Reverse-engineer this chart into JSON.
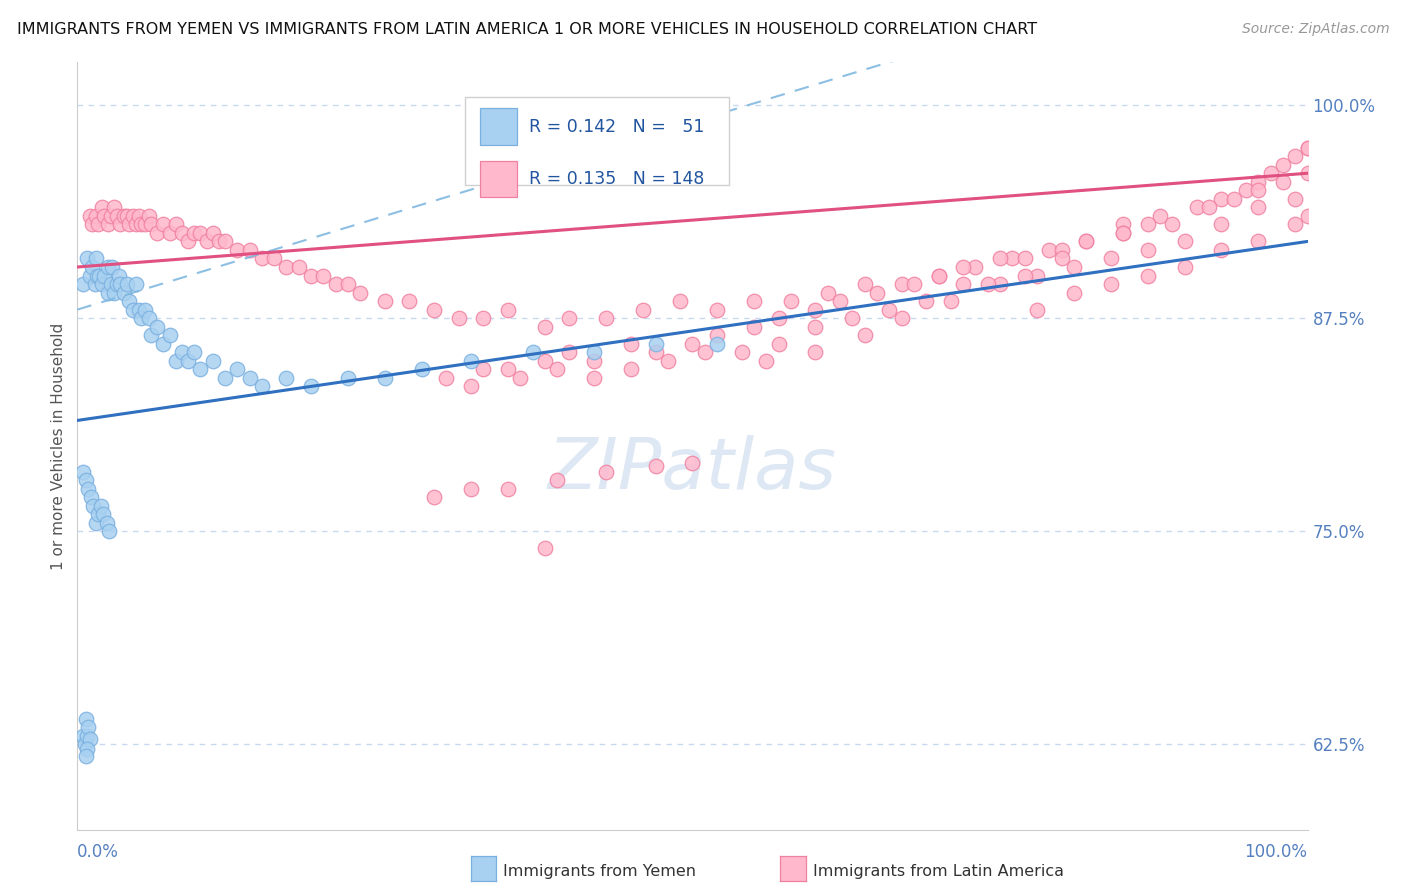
{
  "title": "IMMIGRANTS FROM YEMEN VS IMMIGRANTS FROM LATIN AMERICA 1 OR MORE VEHICLES IN HOUSEHOLD CORRELATION CHART",
  "source": "Source: ZipAtlas.com",
  "ylabel": "1 or more Vehicles in Household",
  "ytick_labels": [
    "62.5%",
    "75.0%",
    "87.5%",
    "100.0%"
  ],
  "ytick_values": [
    0.625,
    0.75,
    0.875,
    1.0
  ],
  "xlim": [
    0.0,
    1.0
  ],
  "ylim": [
    0.575,
    1.025
  ],
  "color_yemen_fill": "#a8d0f0",
  "color_yemen_edge": "#7ab0e0",
  "color_latin_fill": "#ffb8cc",
  "color_latin_edge": "#f080a0",
  "color_trend_yemen": "#3070c0",
  "color_trend_latin": "#e05080",
  "color_trend_dashed": "#80b8e0",
  "background_color": "#ffffff",
  "grid_color": "#c8d8ee",
  "watermark_color": "#dde8f4",
  "title_fontsize": 11.5,
  "source_fontsize": 10,
  "axis_label_color": "#5580c0",
  "yemen_x": [
    0.005,
    0.008,
    0.01,
    0.012,
    0.014,
    0.015,
    0.016,
    0.018,
    0.02,
    0.022,
    0.025,
    0.025,
    0.027,
    0.028,
    0.03,
    0.032,
    0.034,
    0.035,
    0.038,
    0.04,
    0.042,
    0.045,
    0.048,
    0.05,
    0.052,
    0.055,
    0.058,
    0.06,
    0.065,
    0.07,
    0.075,
    0.08,
    0.085,
    0.09,
    0.095,
    0.1,
    0.11,
    0.12,
    0.13,
    0.14,
    0.15,
    0.17,
    0.19,
    0.22,
    0.25,
    0.28,
    0.32,
    0.37,
    0.42,
    0.47,
    0.52
  ],
  "yemen_y": [
    0.895,
    0.91,
    0.9,
    0.905,
    0.895,
    0.91,
    0.9,
    0.9,
    0.895,
    0.9,
    0.905,
    0.89,
    0.895,
    0.905,
    0.89,
    0.895,
    0.9,
    0.895,
    0.89,
    0.895,
    0.885,
    0.88,
    0.895,
    0.88,
    0.875,
    0.88,
    0.875,
    0.865,
    0.87,
    0.86,
    0.865,
    0.85,
    0.855,
    0.85,
    0.855,
    0.845,
    0.85,
    0.84,
    0.845,
    0.84,
    0.835,
    0.84,
    0.835,
    0.84,
    0.84,
    0.845,
    0.85,
    0.855,
    0.855,
    0.86,
    0.86
  ],
  "yemen_low_x": [
    0.005,
    0.007,
    0.009,
    0.011,
    0.013,
    0.015,
    0.017,
    0.019,
    0.021,
    0.024,
    0.026
  ],
  "yemen_low_y": [
    0.785,
    0.78,
    0.775,
    0.77,
    0.765,
    0.755,
    0.76,
    0.765,
    0.76,
    0.755,
    0.75
  ],
  "yemen_outlier_x": [
    0.005,
    0.006,
    0.007,
    0.008,
    0.009,
    0.01,
    0.008,
    0.007
  ],
  "yemen_outlier_y": [
    0.63,
    0.625,
    0.64,
    0.63,
    0.635,
    0.628,
    0.622,
    0.618
  ],
  "latin_x": [
    0.01,
    0.012,
    0.015,
    0.017,
    0.02,
    0.022,
    0.025,
    0.027,
    0.03,
    0.032,
    0.035,
    0.038,
    0.04,
    0.042,
    0.045,
    0.048,
    0.05,
    0.052,
    0.055,
    0.058,
    0.06,
    0.065,
    0.07,
    0.075,
    0.08,
    0.085,
    0.09,
    0.095,
    0.1,
    0.105,
    0.11,
    0.115,
    0.12,
    0.13,
    0.14,
    0.15,
    0.16,
    0.17,
    0.18,
    0.19,
    0.2,
    0.21,
    0.22,
    0.23,
    0.25,
    0.27,
    0.29,
    0.31,
    0.33,
    0.35,
    0.38,
    0.4,
    0.43,
    0.46,
    0.49,
    0.52,
    0.55,
    0.58,
    0.61,
    0.64,
    0.67,
    0.7,
    0.73,
    0.76,
    0.79,
    0.82,
    0.85,
    0.88,
    0.91,
    0.93,
    0.95,
    0.96,
    0.97,
    0.98,
    0.99,
    1.0
  ],
  "latin_y": [
    0.935,
    0.93,
    0.935,
    0.93,
    0.94,
    0.935,
    0.93,
    0.935,
    0.94,
    0.935,
    0.93,
    0.935,
    0.935,
    0.93,
    0.935,
    0.93,
    0.935,
    0.93,
    0.93,
    0.935,
    0.93,
    0.925,
    0.93,
    0.925,
    0.93,
    0.925,
    0.92,
    0.925,
    0.925,
    0.92,
    0.925,
    0.92,
    0.92,
    0.915,
    0.915,
    0.91,
    0.91,
    0.905,
    0.905,
    0.9,
    0.9,
    0.895,
    0.895,
    0.89,
    0.885,
    0.885,
    0.88,
    0.875,
    0.875,
    0.88,
    0.87,
    0.875,
    0.875,
    0.88,
    0.885,
    0.88,
    0.885,
    0.885,
    0.89,
    0.895,
    0.895,
    0.9,
    0.905,
    0.91,
    0.915,
    0.92,
    0.93,
    0.935,
    0.94,
    0.945,
    0.95,
    0.955,
    0.96,
    0.965,
    0.97,
    0.975
  ],
  "latin_mid_x": [
    0.3,
    0.32,
    0.35,
    0.38,
    0.4,
    0.42,
    0.45,
    0.47,
    0.5,
    0.52,
    0.55,
    0.57,
    0.6,
    0.62,
    0.65,
    0.68,
    0.7,
    0.72,
    0.75,
    0.77,
    0.8,
    0.82,
    0.85,
    0.87,
    0.89,
    0.92,
    0.94,
    0.96,
    0.98,
    1.0,
    0.33,
    0.36,
    0.39,
    0.42,
    0.45,
    0.48,
    0.51,
    0.54,
    0.57,
    0.6,
    0.63,
    0.66,
    0.69,
    0.72,
    0.75,
    0.78,
    0.81,
    0.84,
    0.87,
    0.9,
    0.93,
    0.96,
    0.99,
    0.78,
    0.81,
    0.84,
    0.87,
    0.9,
    0.93,
    0.96,
    0.99,
    1.0,
    0.56,
    0.6,
    0.64,
    0.67,
    0.71,
    0.74,
    0.77,
    0.8,
    0.85,
    1.0
  ],
  "latin_mid_y": [
    0.84,
    0.835,
    0.845,
    0.85,
    0.855,
    0.85,
    0.86,
    0.855,
    0.86,
    0.865,
    0.87,
    0.875,
    0.88,
    0.885,
    0.89,
    0.895,
    0.9,
    0.905,
    0.91,
    0.91,
    0.915,
    0.92,
    0.925,
    0.93,
    0.93,
    0.94,
    0.945,
    0.95,
    0.955,
    0.96,
    0.845,
    0.84,
    0.845,
    0.84,
    0.845,
    0.85,
    0.855,
    0.855,
    0.86,
    0.87,
    0.875,
    0.88,
    0.885,
    0.895,
    0.895,
    0.9,
    0.905,
    0.91,
    0.915,
    0.92,
    0.93,
    0.94,
    0.945,
    0.88,
    0.89,
    0.895,
    0.9,
    0.905,
    0.915,
    0.92,
    0.93,
    0.935,
    0.85,
    0.855,
    0.865,
    0.875,
    0.885,
    0.895,
    0.9,
    0.91,
    0.925,
    0.975
  ],
  "latin_low_x": [
    0.29,
    0.32,
    0.35,
    0.39,
    0.43,
    0.47,
    0.5
  ],
  "latin_low_y": [
    0.77,
    0.775,
    0.775,
    0.78,
    0.785,
    0.788,
    0.79
  ],
  "latin_outlier_x": [
    0.38
  ],
  "latin_outlier_y": [
    0.74
  ]
}
